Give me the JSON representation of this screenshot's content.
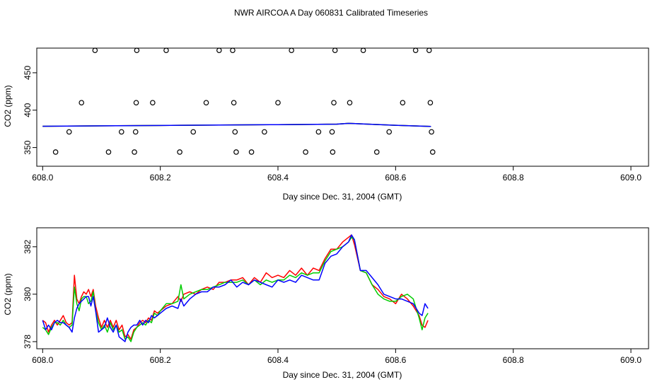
{
  "title": "NWR AIRCOA A  Day 060831  Calibrated Timeseries",
  "colors": {
    "red": "#ff0000",
    "green": "#00cc00",
    "blue": "#0000ff",
    "black": "#000000"
  },
  "chart_data": [
    {
      "type": "scatter",
      "xlabel": "Day since Dec. 31, 2004 (GMT)",
      "ylabel": "CO2 (ppm)",
      "xlim": [
        607.99,
        609.03
      ],
      "ylim": [
        325,
        483
      ],
      "xticks": [
        608.0,
        608.2,
        608.4,
        608.6,
        608.8,
        609.0
      ],
      "xtick_labels": [
        "608.0",
        "608.2",
        "608.4",
        "608.6",
        "608.8",
        "609.0"
      ],
      "yticks": [
        350,
        400,
        450
      ],
      "ytick_labels": [
        "350",
        "400",
        "450"
      ],
      "points": {
        "x": [
          608.089,
          608.16,
          608.21,
          608.3,
          608.323,
          608.423,
          608.497,
          608.545,
          608.634,
          608.657,
          608.066,
          608.159,
          608.187,
          608.278,
          608.325,
          608.4,
          608.495,
          608.522,
          608.612,
          608.659,
          608.045,
          608.134,
          608.158,
          608.256,
          608.327,
          608.377,
          608.469,
          608.492,
          608.589,
          608.661,
          608.022,
          608.112,
          608.156,
          608.233,
          608.329,
          608.355,
          608.447,
          608.493,
          608.568,
          608.663
        ],
        "y": [
          480,
          480,
          480,
          480,
          480,
          480,
          480,
          480,
          480,
          480,
          410,
          410,
          410,
          410,
          410,
          410,
          410,
          410,
          410,
          410,
          371,
          371,
          371,
          371,
          371,
          371,
          371,
          371,
          371,
          371,
          344,
          344,
          344,
          344,
          344,
          344,
          344,
          344,
          344,
          344
        ]
      },
      "series": [
        {
          "color": "red",
          "x": [
            608.0,
            608.1,
            608.2,
            608.3,
            608.4,
            608.5,
            608.52,
            608.6,
            608.66
          ],
          "y": [
            378.5,
            379.0,
            379.5,
            380.2,
            380.6,
            381.3,
            382.3,
            379.8,
            378.2
          ]
        },
        {
          "color": "green",
          "x": [
            608.0,
            608.1,
            608.2,
            608.3,
            608.4,
            608.5,
            608.52,
            608.6,
            608.66
          ],
          "y": [
            378.5,
            379.0,
            379.5,
            380.2,
            380.6,
            381.3,
            382.3,
            379.8,
            378.2
          ]
        },
        {
          "color": "blue",
          "x": [
            608.0,
            608.1,
            608.2,
            608.3,
            608.4,
            608.5,
            608.52,
            608.6,
            608.66
          ],
          "y": [
            378.5,
            379.0,
            379.5,
            380.2,
            380.6,
            381.3,
            382.3,
            379.8,
            378.2
          ]
        }
      ]
    },
    {
      "type": "line",
      "xlabel": "Day since Dec. 31, 2004 (GMT)",
      "ylabel": "CO2 (ppm)",
      "xlim": [
        607.99,
        609.03
      ],
      "ylim": [
        377.7,
        382.8
      ],
      "xticks": [
        608.0,
        608.2,
        608.4,
        608.6,
        608.8,
        609.0
      ],
      "xtick_labels": [
        "608.0",
        "608.2",
        "608.4",
        "608.6",
        "608.8",
        "609.0"
      ],
      "yticks": [
        378,
        380,
        382
      ],
      "ytick_labels": [
        "378",
        "380",
        "382"
      ],
      "series": [
        {
          "color": "red",
          "x": [
            608.0,
            608.005,
            608.01,
            608.015,
            608.02,
            608.025,
            608.03,
            608.035,
            608.04,
            608.045,
            608.05,
            608.054,
            608.058,
            608.062,
            608.066,
            608.07,
            608.074,
            608.078,
            608.082,
            608.086,
            608.09,
            608.095,
            608.1,
            608.105,
            608.11,
            608.115,
            608.12,
            608.125,
            608.13,
            608.135,
            608.14,
            608.145,
            608.15,
            608.155,
            608.16,
            608.165,
            608.17,
            608.175,
            608.18,
            608.185,
            608.19,
            608.195,
            608.2,
            608.21,
            608.22,
            608.23,
            608.235,
            608.24,
            608.25,
            608.26,
            608.27,
            608.28,
            608.29,
            608.3,
            608.31,
            608.32,
            608.33,
            608.34,
            608.35,
            608.36,
            608.37,
            608.38,
            608.39,
            608.4,
            608.41,
            608.42,
            608.43,
            608.44,
            608.45,
            608.46,
            608.47,
            608.48,
            608.49,
            608.5,
            608.51,
            608.52,
            608.525,
            608.53,
            608.54,
            608.55,
            608.56,
            608.57,
            608.58,
            608.59,
            608.6,
            608.61,
            608.62,
            608.63,
            608.64,
            608.645,
            608.65,
            608.655
          ],
          "y": [
            378.9,
            378.8,
            378.4,
            378.7,
            378.9,
            378.7,
            378.9,
            379.1,
            378.8,
            378.7,
            378.8,
            380.8,
            379.8,
            379.6,
            379.9,
            380.1,
            380.0,
            380.2,
            379.9,
            380.2,
            379.5,
            379.0,
            378.6,
            378.9,
            378.6,
            378.9,
            378.6,
            378.9,
            378.5,
            378.7,
            378.2,
            378.3,
            378.1,
            378.5,
            378.6,
            378.8,
            378.9,
            378.8,
            379.0,
            378.9,
            379.3,
            379.2,
            379.3,
            379.5,
            379.6,
            379.9,
            379.7,
            380.0,
            380.1,
            380.0,
            380.2,
            380.3,
            380.2,
            380.5,
            380.5,
            380.6,
            380.6,
            380.7,
            380.4,
            380.7,
            380.5,
            380.9,
            380.7,
            380.8,
            380.7,
            381.0,
            380.8,
            381.1,
            380.8,
            381.1,
            381.0,
            381.5,
            381.9,
            381.9,
            382.2,
            382.4,
            382.5,
            382.1,
            381.0,
            380.9,
            380.4,
            380.2,
            379.9,
            379.8,
            379.6,
            380.0,
            379.8,
            379.5,
            379.1,
            378.7,
            378.6,
            378.9
          ]
        },
        {
          "color": "green",
          "x": [
            608.0,
            608.005,
            608.01,
            608.015,
            608.02,
            608.025,
            608.03,
            608.035,
            608.04,
            608.045,
            608.05,
            608.054,
            608.058,
            608.062,
            608.066,
            608.07,
            608.074,
            608.078,
            608.082,
            608.086,
            608.09,
            608.095,
            608.1,
            608.105,
            608.11,
            608.115,
            608.12,
            608.125,
            608.13,
            608.135,
            608.14,
            608.145,
            608.15,
            608.155,
            608.16,
            608.165,
            608.17,
            608.175,
            608.18,
            608.185,
            608.19,
            608.195,
            608.2,
            608.21,
            608.22,
            608.23,
            608.235,
            608.24,
            608.25,
            608.26,
            608.27,
            608.28,
            608.29,
            608.3,
            608.31,
            608.32,
            608.33,
            608.34,
            608.35,
            608.36,
            608.37,
            608.38,
            608.39,
            608.4,
            608.41,
            608.42,
            608.43,
            608.44,
            608.45,
            608.46,
            608.47,
            608.48,
            608.49,
            608.5,
            608.51,
            608.52,
            608.525,
            608.53,
            608.54,
            608.55,
            608.56,
            608.57,
            608.58,
            608.59,
            608.6,
            608.61,
            608.62,
            608.63,
            608.64,
            608.645,
            608.65,
            608.655
          ],
          "y": [
            378.6,
            378.5,
            378.3,
            378.6,
            378.8,
            378.8,
            378.7,
            378.9,
            378.7,
            378.6,
            378.7,
            380.3,
            379.6,
            379.3,
            379.8,
            379.9,
            379.9,
            379.6,
            379.7,
            380.1,
            379.3,
            378.8,
            378.5,
            378.7,
            378.4,
            378.8,
            378.5,
            378.7,
            378.4,
            378.5,
            378.1,
            378.2,
            378.0,
            378.4,
            378.6,
            378.7,
            378.8,
            378.7,
            378.9,
            378.8,
            379.2,
            379.1,
            379.3,
            379.6,
            379.6,
            379.7,
            380.4,
            379.8,
            380.0,
            380.1,
            380.2,
            380.2,
            380.3,
            380.4,
            380.5,
            380.5,
            380.5,
            380.6,
            380.4,
            380.6,
            380.4,
            380.6,
            380.5,
            380.6,
            380.6,
            380.8,
            380.7,
            380.9,
            380.8,
            380.9,
            380.9,
            381.4,
            381.8,
            381.9,
            382.0,
            382.2,
            382.4,
            382.3,
            381.0,
            380.9,
            380.4,
            380.0,
            379.8,
            379.7,
            379.7,
            379.9,
            380.0,
            379.8,
            379.0,
            378.5,
            379.0,
            379.2
          ]
        },
        {
          "color": "blue",
          "x": [
            608.0,
            608.005,
            608.01,
            608.015,
            608.02,
            608.025,
            608.03,
            608.035,
            608.04,
            608.045,
            608.05,
            608.054,
            608.058,
            608.062,
            608.066,
            608.07,
            608.074,
            608.078,
            608.082,
            608.086,
            608.09,
            608.095,
            608.1,
            608.105,
            608.11,
            608.115,
            608.12,
            608.125,
            608.13,
            608.135,
            608.14,
            608.145,
            608.15,
            608.155,
            608.16,
            608.165,
            608.17,
            608.175,
            608.18,
            608.185,
            608.19,
            608.195,
            608.2,
            608.21,
            608.22,
            608.23,
            608.235,
            608.24,
            608.25,
            608.26,
            608.27,
            608.28,
            608.29,
            608.3,
            608.31,
            608.32,
            608.33,
            608.34,
            608.35,
            608.36,
            608.37,
            608.38,
            608.39,
            608.4,
            608.41,
            608.42,
            608.43,
            608.44,
            608.45,
            608.46,
            608.47,
            608.48,
            608.49,
            608.5,
            608.51,
            608.52,
            608.525,
            608.53,
            608.54,
            608.55,
            608.56,
            608.57,
            608.58,
            608.59,
            608.6,
            608.61,
            608.62,
            608.63,
            608.64,
            608.645,
            608.65,
            608.655
          ],
          "y": [
            378.9,
            378.5,
            378.7,
            378.5,
            378.8,
            378.9,
            378.8,
            378.8,
            378.7,
            378.6,
            378.4,
            379.0,
            379.4,
            379.6,
            379.7,
            379.8,
            379.9,
            379.9,
            379.5,
            379.9,
            379.3,
            378.4,
            378.5,
            378.6,
            379.0,
            378.6,
            378.4,
            378.7,
            378.2,
            378.1,
            378.0,
            378.4,
            378.6,
            378.7,
            378.7,
            378.9,
            378.7,
            378.9,
            378.8,
            379.1,
            379.0,
            379.1,
            379.2,
            379.4,
            379.5,
            379.4,
            379.8,
            379.5,
            379.8,
            380.0,
            380.1,
            380.1,
            380.3,
            380.3,
            380.4,
            380.6,
            380.3,
            380.5,
            380.4,
            380.6,
            380.5,
            380.4,
            380.3,
            380.6,
            380.5,
            380.6,
            380.5,
            380.8,
            380.7,
            380.6,
            380.6,
            381.3,
            381.6,
            381.7,
            382.0,
            382.2,
            382.5,
            382.3,
            381.0,
            381.0,
            380.7,
            380.4,
            380.0,
            379.9,
            379.8,
            379.8,
            379.7,
            379.6,
            379.2,
            379.1,
            379.6,
            379.4
          ]
        }
      ]
    }
  ]
}
